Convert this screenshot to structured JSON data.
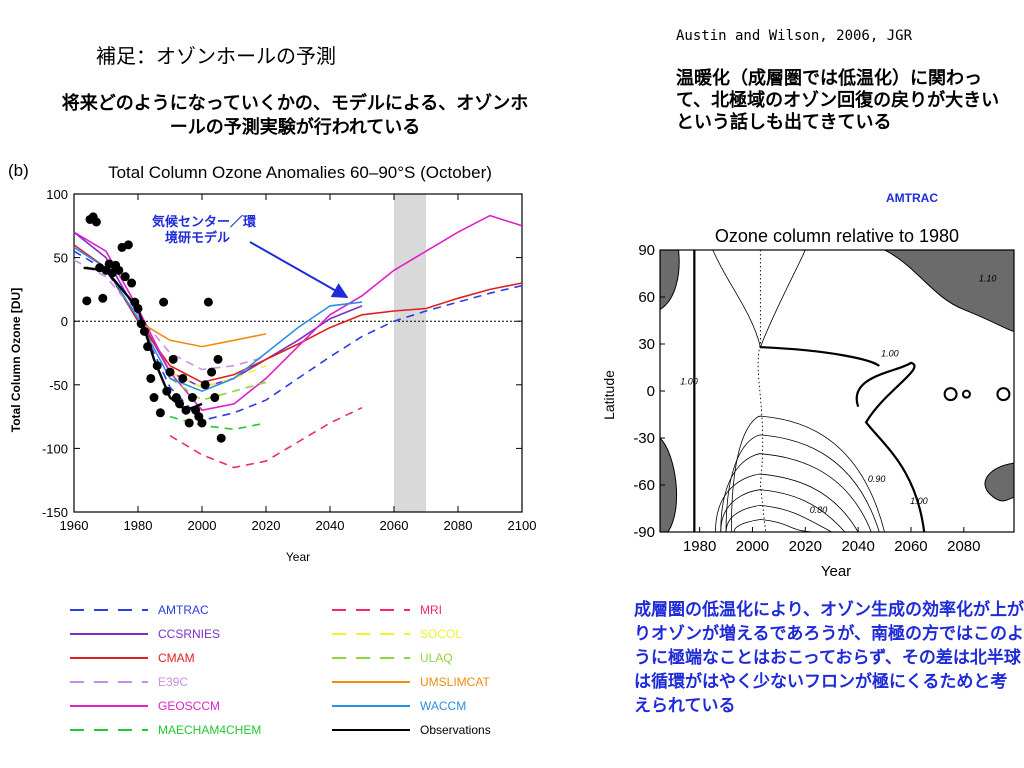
{
  "slide_title": "補足：オゾンホールの予測",
  "intro_text": "将来どのようになっていくかの、モデルによる、オゾンホールの予測実験が行われている",
  "citation": "Austin and Wilson, 2006, JGR",
  "right_note": "温暖化（成層圏では低温化）に関わって、北極域のオゾン回復の戻りが大きいという話しも出てきている",
  "bottom_note": "成層圏の低温化により、オゾン生成の効率化が上がりオゾンが増えるであろうが、南極の方ではこのように極端なことはおこっておらず、その差は北半球は循環がはやく少ないフロンが極にくるためと考えられている",
  "chart_data": [
    {
      "type": "line",
      "panel_label": "(b)",
      "title": "Total Column Ozone Anomalies 60–90°S (October)",
      "xlabel": "Year",
      "ylabel": "Total Column Ozone [DU]",
      "xlim": [
        1960,
        2100
      ],
      "ylim": [
        -150,
        100
      ],
      "xticks": [
        1960,
        1980,
        2000,
        2020,
        2040,
        2060,
        2080,
        2100
      ],
      "yticks": [
        -150,
        -100,
        -50,
        0,
        50,
        100
      ],
      "shaded_band": [
        2060,
        2070
      ],
      "zero_line": true,
      "annotation": "気候センター／環境研モデル",
      "series": [
        {
          "name": "AMTRAC",
          "color": "#2b3ee0",
          "dash": "8,6",
          "x": [
            1960,
            1970,
            1980,
            1990,
            2000,
            2010,
            2020,
            2030,
            2040,
            2050,
            2060,
            2070,
            2080,
            2090,
            2100
          ],
          "y": [
            55,
            40,
            2,
            -52,
            -78,
            -72,
            -62,
            -45,
            -28,
            -12,
            0,
            8,
            15,
            22,
            28
          ]
        },
        {
          "name": "CCSRNIES",
          "color": "#7a2fc9",
          "dash": "",
          "x": [
            1960,
            1970,
            1980,
            1990,
            2000,
            2010,
            2020,
            2030,
            2040,
            2050
          ],
          "y": [
            70,
            50,
            5,
            -40,
            -52,
            -45,
            -30,
            -15,
            2,
            12
          ]
        },
        {
          "name": "CMAM",
          "color": "#e02020",
          "dash": "",
          "x": [
            1960,
            1970,
            1980,
            1990,
            2000,
            2010,
            2020,
            2030,
            2040,
            2050,
            2060,
            2070,
            2080,
            2090,
            2100
          ],
          "y": [
            60,
            42,
            0,
            -35,
            -48,
            -42,
            -30,
            -18,
            -5,
            5,
            8,
            10,
            18,
            25,
            30
          ]
        },
        {
          "name": "E39C",
          "color": "#c890e0",
          "dash": "8,6",
          "x": [
            1960,
            1970,
            1980,
            1990,
            2000,
            2010,
            2020
          ],
          "y": [
            48,
            35,
            5,
            -25,
            -38,
            -35,
            -28
          ]
        },
        {
          "name": "GEOSCCM",
          "color": "#e020c8",
          "dash": "",
          "x": [
            1960,
            1970,
            1980,
            1990,
            2000,
            2010,
            2020,
            2030,
            2040,
            2050,
            2060,
            2070,
            2080,
            2090,
            2100
          ],
          "y": [
            70,
            55,
            10,
            -40,
            -70,
            -65,
            -45,
            -20,
            5,
            20,
            40,
            55,
            70,
            83,
            75
          ]
        },
        {
          "name": "MAECHAM4CHEM",
          "color": "#22c832",
          "dash": "8,6",
          "x": [
            1990,
            2000,
            2010,
            2020
          ],
          "y": [
            -75,
            -82,
            -85,
            -80
          ]
        },
        {
          "name": "MRI",
          "color": "#f0286e",
          "dash": "8,6",
          "x": [
            1990,
            2000,
            2010,
            2020,
            2030,
            2040,
            2050
          ],
          "y": [
            -90,
            -105,
            -115,
            -110,
            -95,
            -80,
            -68
          ]
        },
        {
          "name": "SOCOL",
          "color": "#f5f032",
          "dash": "8,6",
          "x": [
            1990,
            2000,
            2010,
            2020
          ],
          "y": [
            -40,
            -52,
            -45,
            -35
          ]
        },
        {
          "name": "ULAQ",
          "color": "#8ed63a",
          "dash": "8,6",
          "x": [
            1990,
            2000,
            2010,
            2020
          ],
          "y": [
            -45,
            -62,
            -55,
            -48
          ]
        },
        {
          "name": "UMSLIMCAT",
          "color": "#f08c10",
          "dash": "",
          "x": [
            1980,
            1990,
            2000,
            2010,
            2020
          ],
          "y": [
            0,
            -15,
            -20,
            -15,
            -10
          ]
        },
        {
          "name": "WACCM",
          "color": "#2a8ee6",
          "dash": "",
          "x": [
            1960,
            1970,
            1980,
            1990,
            2000,
            2010,
            2020,
            2030,
            2040,
            2050
          ],
          "y": [
            58,
            42,
            2,
            -45,
            -55,
            -45,
            -25,
            -5,
            12,
            15
          ]
        },
        {
          "name": "Observations",
          "color": "#000000",
          "dash": "",
          "x": [
            1963,
            1970,
            1980,
            1985,
            1990,
            1995,
            2000
          ],
          "y": [
            42,
            40,
            10,
            -30,
            -60,
            -70,
            -65
          ]
        }
      ],
      "observation_points": {
        "x": [
          1964,
          1965,
          1966,
          1967,
          1968,
          1969,
          1970,
          1971,
          1972,
          1973,
          1974,
          1975,
          1976,
          1977,
          1978,
          1979,
          1980,
          1981,
          1982,
          1983,
          1984,
          1985,
          1986,
          1987,
          1988,
          1989,
          1990,
          1991,
          1992,
          1993,
          1994,
          1995,
          1996,
          1997,
          1998,
          1999,
          2000,
          2001,
          2002,
          2003,
          2004,
          2005,
          2006
        ],
        "y": [
          16,
          80,
          82,
          78,
          42,
          18,
          40,
          45,
          38,
          44,
          40,
          58,
          35,
          60,
          30,
          15,
          10,
          -2,
          -8,
          -20,
          -45,
          -60,
          -35,
          -72,
          15,
          -55,
          -40,
          -30,
          -60,
          -65,
          -45,
          -70,
          -80,
          -60,
          -70,
          -75,
          -80,
          -50,
          15,
          -40,
          -60,
          -30,
          -92
        ]
      }
    },
    {
      "type": "contour",
      "label": "AMTRAC",
      "title": "Ozone column relative to 1980",
      "xlabel": "Year",
      "ylabel": "Latitude",
      "xlim": [
        1965,
        2099
      ],
      "ylim": [
        -90,
        90
      ],
      "xticks": [
        1980,
        2000,
        2020,
        2040,
        2060,
        2080
      ],
      "yticks": [
        -90,
        -60,
        -30,
        0,
        30,
        60,
        90
      ],
      "contour_labels": [
        "1.10",
        "1.00",
        "1.00",
        "1.00",
        "0.90",
        "0.80"
      ]
    }
  ]
}
